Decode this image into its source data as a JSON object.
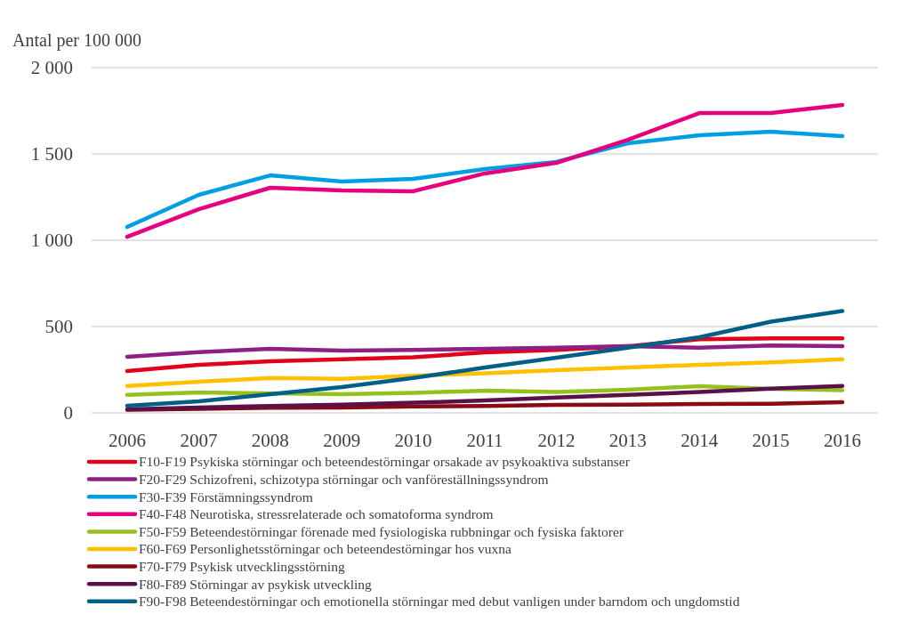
{
  "chart_data": {
    "type": "line",
    "ylabel": "Antal per 100 000",
    "categories": [
      "2006",
      "2007",
      "2008",
      "2009",
      "2010",
      "2011",
      "2012",
      "2013",
      "2014",
      "2015",
      "2016"
    ],
    "ylim": [
      0,
      2000
    ],
    "yticks": [
      0,
      500,
      {
        "value": 1000,
        "label": "1 000"
      },
      {
        "value": 1500,
        "label": "1 500"
      },
      {
        "value": 2000,
        "label": "2 000"
      }
    ],
    "grid": "y",
    "legend": "bottom",
    "marker": "none",
    "series": [
      {
        "name": "F10-F19 Psykiska störningar och beteendestörningar orsakade av psykoaktiva substanser",
        "color": "#e2001a",
        "values": [
          242,
          278,
          299,
          311,
          322,
          350,
          365,
          386,
          427,
          432,
          432
        ]
      },
      {
        "name": "F20-F29 Schizofreni, schizotypa störningar och vanföreställningssyndrom",
        "color": "#8e1f85",
        "values": [
          325,
          352,
          371,
          361,
          365,
          371,
          378,
          386,
          378,
          391,
          386
        ]
      },
      {
        "name": "F30-F39 Förstämningssyndrom",
        "color": "#009fe3",
        "values": [
          1077,
          1263,
          1376,
          1340,
          1356,
          1412,
          1454,
          1562,
          1608,
          1629,
          1603
        ]
      },
      {
        "name": "F40-F48 Neurotiska, stressrelaterade och somatoforma syndrom",
        "color": "#e6007e",
        "values": [
          1020,
          1180,
          1304,
          1289,
          1284,
          1387,
          1448,
          1582,
          1737,
          1737,
          1784
        ]
      },
      {
        "name": "F50-F59 Beteendestörningar förenade med fysiologiska rubbningar och fysiska faktorer",
        "color": "#95c11f",
        "values": [
          105,
          118,
          113,
          108,
          116,
          129,
          121,
          134,
          155,
          139,
          132
        ]
      },
      {
        "name": "F60-F69 Personlighetsstörningar och beteendestörningar hos vuxna",
        "color": "#ffc000",
        "values": [
          156,
          180,
          202,
          197,
          215,
          229,
          248,
          263,
          278,
          293,
          311
        ]
      },
      {
        "name": "F70-F79 Psykisk utvecklingsstörning",
        "color": "#8b0a14",
        "values": [
          18,
          23,
          29,
          31,
          37,
          40,
          46,
          48,
          52,
          53,
          62
        ]
      },
      {
        "name": "F80-F89 Störningar av psykisk utveckling",
        "color": "#5a1049",
        "values": [
          21,
          31,
          40,
          48,
          59,
          72,
          89,
          105,
          121,
          140,
          156
        ]
      },
      {
        "name": "F90-F98 Beteendestörningar och emotionella störningar med debut vanligen under barndom och ungdomstid",
        "color": "#005f87",
        "values": [
          41,
          67,
          108,
          149,
          202,
          263,
          320,
          378,
          438,
          528,
          590
        ]
      }
    ]
  }
}
